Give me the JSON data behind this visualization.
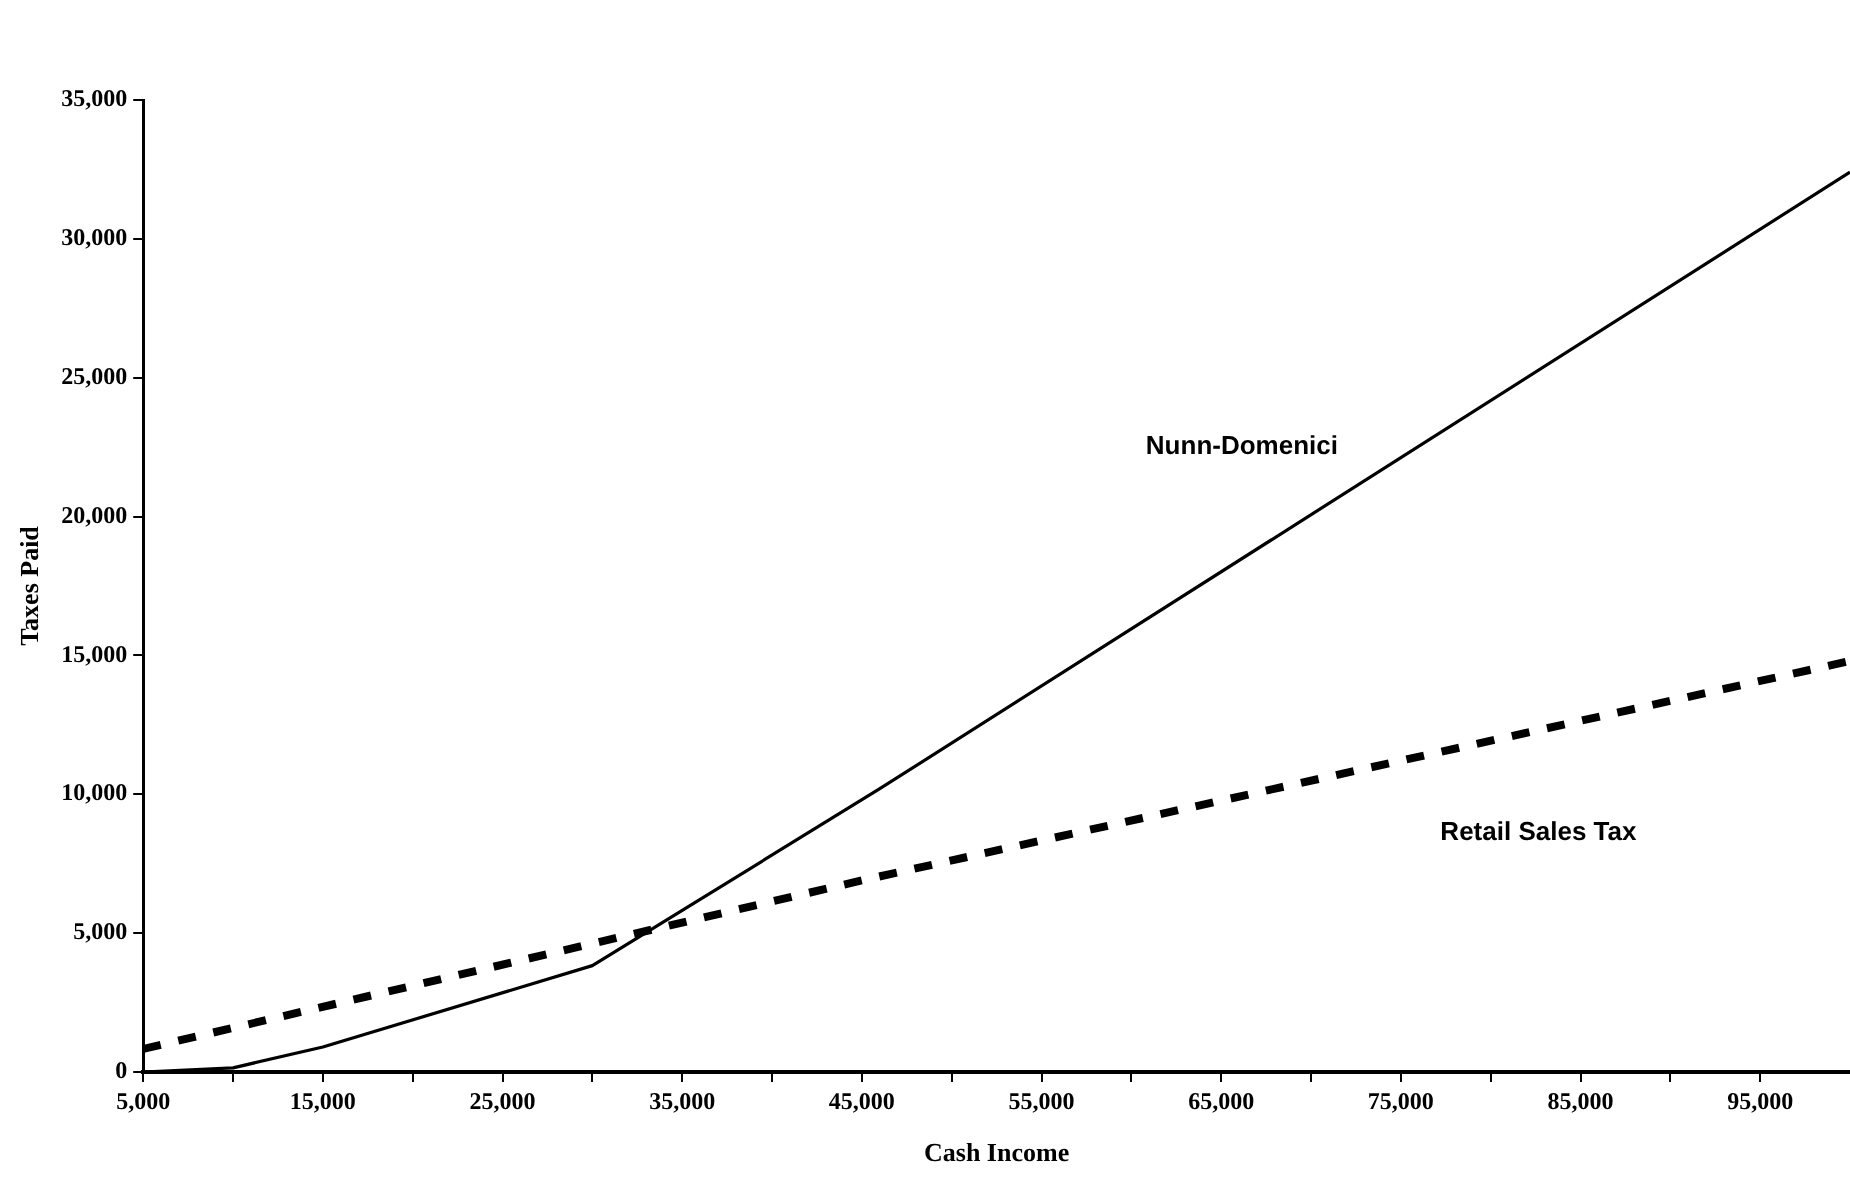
{
  "chart_data": {
    "type": "line",
    "xlabel": "Cash Income",
    "ylabel": "Taxes Paid",
    "xlim": [
      5000,
      100000
    ],
    "xticks": [
      {
        "value": 5000,
        "label": "5,000"
      },
      {
        "value": 10000,
        "label": null
      },
      {
        "value": 15000,
        "label": "15,000"
      },
      {
        "value": 20000,
        "label": null
      },
      {
        "value": 25000,
        "label": "25,000"
      },
      {
        "value": 30000,
        "label": null
      },
      {
        "value": 35000,
        "label": "35,000"
      },
      {
        "value": 40000,
        "label": null
      },
      {
        "value": 45000,
        "label": "45,000"
      },
      {
        "value": 50000,
        "label": null
      },
      {
        "value": 55000,
        "label": "55,000"
      },
      {
        "value": 60000,
        "label": null
      },
      {
        "value": 65000,
        "label": "65,000"
      },
      {
        "value": 70000,
        "label": null
      },
      {
        "value": 75000,
        "label": "75,000"
      },
      {
        "value": 80000,
        "label": null
      },
      {
        "value": 85000,
        "label": "85,000"
      },
      {
        "value": 90000,
        "label": null
      },
      {
        "value": 95000,
        "label": "95,000"
      }
    ],
    "ylim": [
      0,
      35000
    ],
    "yticks": [
      0,
      {
        "value": 5000,
        "label": "5,000"
      },
      {
        "value": 10000,
        "label": "10,000"
      },
      {
        "value": 15000,
        "label": "15,000"
      },
      {
        "value": 20000,
        "label": "20,000"
      },
      {
        "value": 25000,
        "label": "25,000"
      },
      {
        "value": 30000,
        "label": "30,000"
      },
      {
        "value": 35000,
        "label": "35,000"
      }
    ],
    "grid": false,
    "legend": false,
    "marker": "none",
    "series": [
      {
        "name": "Nunn-Domenici",
        "color": "#000000",
        "line_style": "solid",
        "x": [
          5000,
          10000,
          15000,
          30000,
          46000,
          100000
        ],
        "values": [
          0,
          150,
          900,
          3830,
          10200,
          32400
        ]
      },
      {
        "name": "Retail Sales Tax",
        "color": "#000000",
        "line_style": "dashed",
        "x": [
          5000,
          45000,
          100000
        ],
        "values": [
          830,
          6900,
          14800
        ]
      }
    ]
  }
}
